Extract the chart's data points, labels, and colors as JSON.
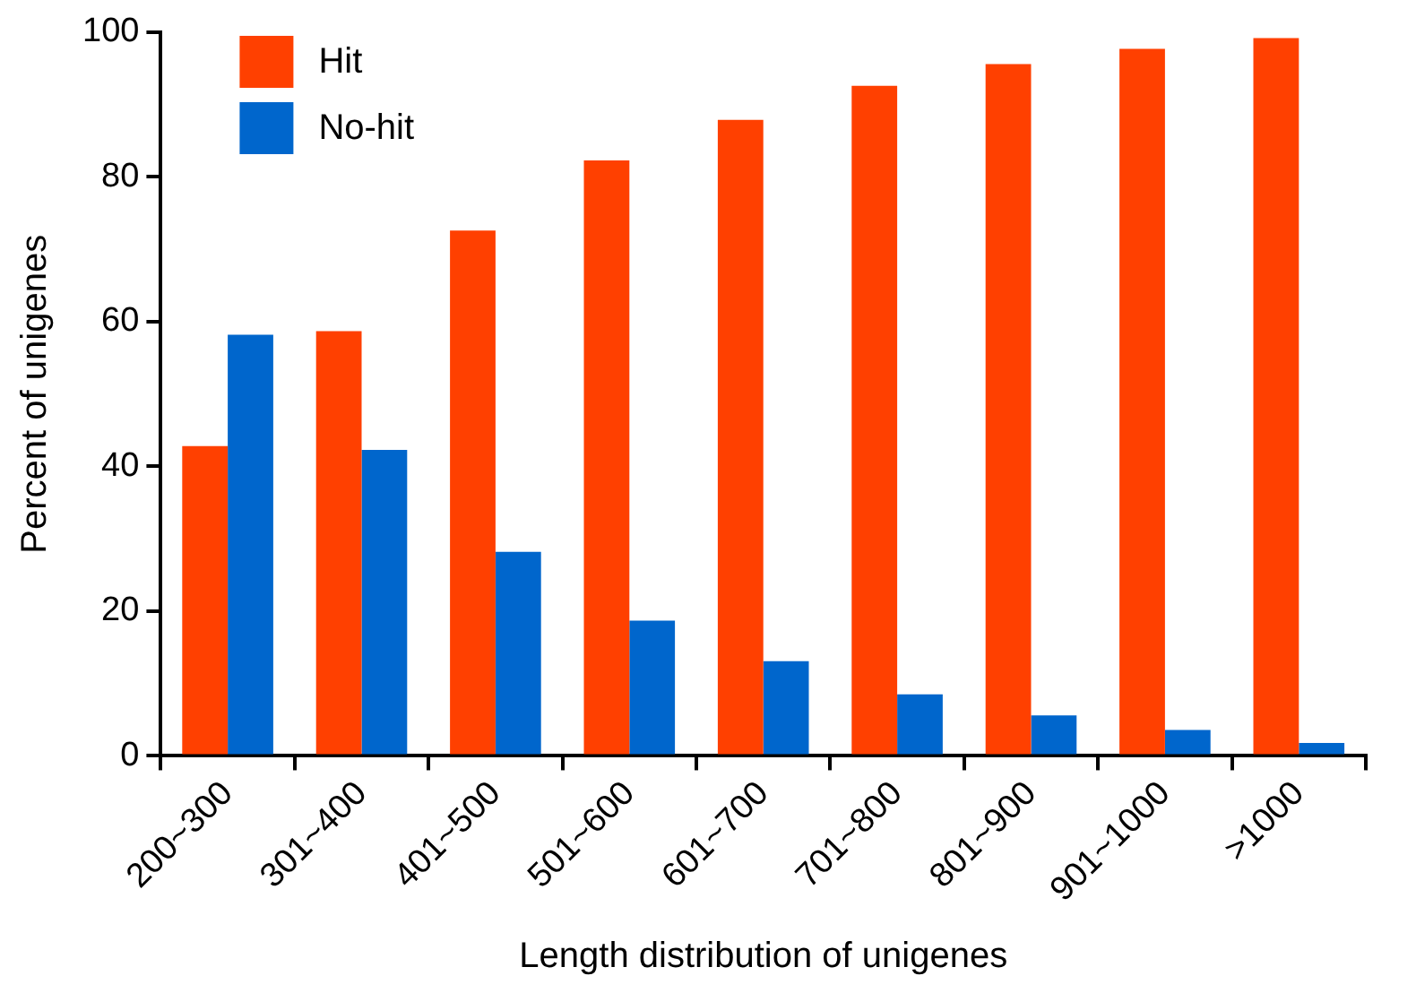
{
  "chart_data": {
    "type": "bar",
    "xlabel": "Length distribution of unigenes",
    "ylabel": "Percent of unigenes",
    "categories": [
      "200~300",
      "301~400",
      "401~500",
      "501~600",
      "601~700",
      "701~800",
      "801~900",
      "901~1000",
      ">1000"
    ],
    "series": [
      {
        "name": "Hit",
        "color": "#ff4000",
        "values": [
          42.8,
          58.7,
          72.6,
          82.3,
          87.9,
          92.6,
          95.6,
          97.7,
          99.2
        ]
      },
      {
        "name": "No-hit",
        "color": "#0066cc",
        "values": [
          58.2,
          42.3,
          28.2,
          18.7,
          13.1,
          8.5,
          5.6,
          3.6,
          1.8
        ]
      }
    ],
    "ylim": [
      0,
      100
    ],
    "yticks": [
      0,
      20,
      40,
      60,
      80,
      100
    ],
    "grid": false,
    "legend": "top left"
  }
}
